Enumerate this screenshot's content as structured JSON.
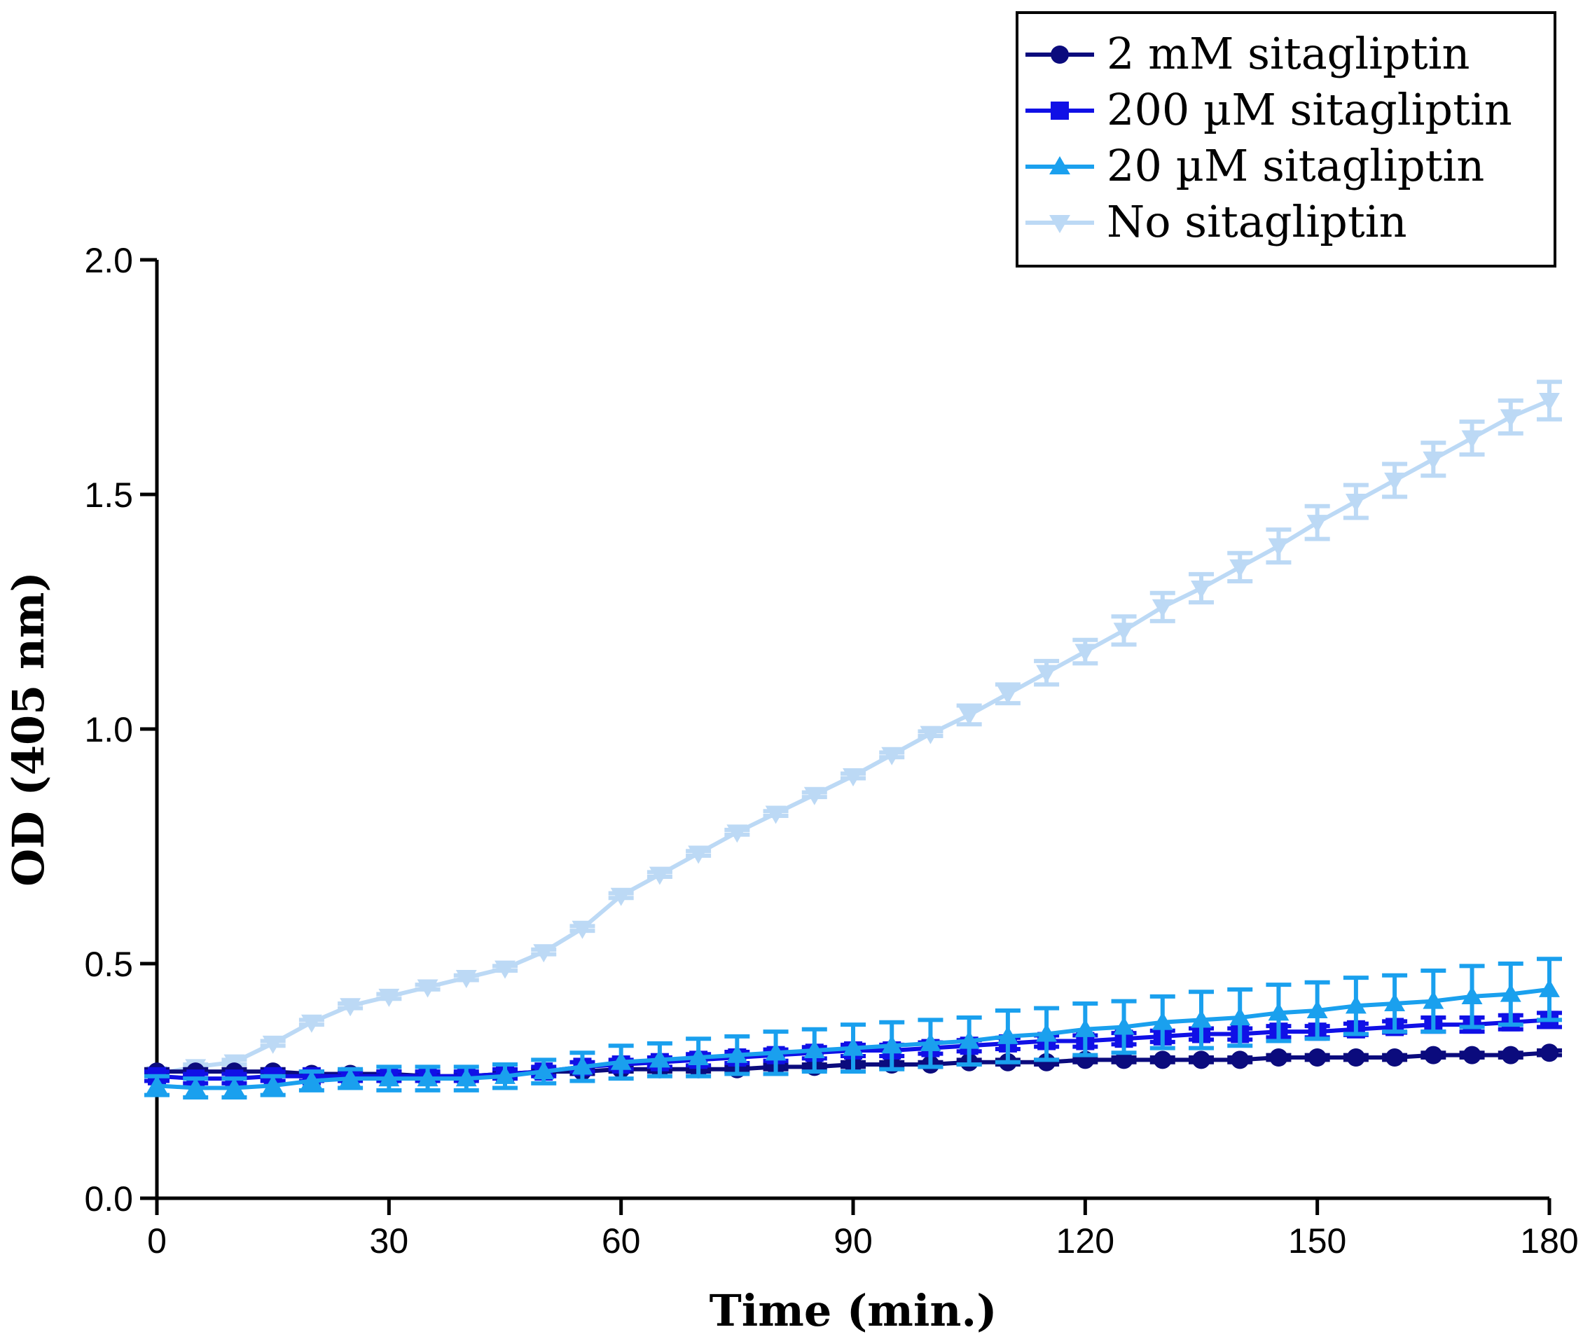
{
  "chart_data": {
    "type": "line",
    "title": "",
    "xlabel": "Time (min.)",
    "ylabel": "OD (405 nm)",
    "xlim": [
      0,
      180
    ],
    "ylim": [
      0,
      2.0
    ],
    "x_ticks": [
      "0",
      "30",
      "60",
      "90",
      "120",
      "150",
      "180"
    ],
    "y_ticks": [
      "0.0",
      "0.5",
      "1.0",
      "1.5",
      "2.0"
    ],
    "x_tick_values": [
      0,
      30,
      60,
      90,
      120,
      150,
      180
    ],
    "y_tick_values": [
      0,
      0.5,
      1.0,
      1.5,
      2.0
    ],
    "legend_position": "top-right",
    "x": [
      0,
      5,
      10,
      15,
      20,
      25,
      30,
      35,
      40,
      45,
      50,
      55,
      60,
      65,
      70,
      75,
      80,
      85,
      90,
      95,
      100,
      105,
      110,
      115,
      120,
      125,
      130,
      135,
      140,
      145,
      150,
      155,
      160,
      165,
      170,
      175,
      180
    ],
    "series": [
      {
        "name": "2 mM sitagliptin",
        "color": "#0b0b7d",
        "marker": "circle",
        "values": [
          0.27,
          0.27,
          0.27,
          0.27,
          0.265,
          0.265,
          0.265,
          0.26,
          0.26,
          0.265,
          0.27,
          0.27,
          0.275,
          0.275,
          0.275,
          0.275,
          0.28,
          0.28,
          0.285,
          0.285,
          0.285,
          0.29,
          0.29,
          0.29,
          0.295,
          0.295,
          0.295,
          0.295,
          0.295,
          0.3,
          0.3,
          0.3,
          0.3,
          0.305,
          0.305,
          0.305,
          0.31
        ],
        "errors": [
          0.005,
          0.005,
          0.005,
          0.005,
          0.005,
          0.005,
          0.005,
          0.005,
          0.005,
          0.005,
          0.005,
          0.005,
          0.005,
          0.005,
          0.005,
          0.005,
          0.005,
          0.005,
          0.005,
          0.005,
          0.005,
          0.005,
          0.005,
          0.005,
          0.005,
          0.005,
          0.005,
          0.005,
          0.005,
          0.005,
          0.005,
          0.005,
          0.005,
          0.005,
          0.005,
          0.005,
          0.005
        ]
      },
      {
        "name": "200 µM sitagliptin",
        "color": "#1010e6",
        "marker": "square",
        "values": [
          0.26,
          0.255,
          0.255,
          0.26,
          0.26,
          0.26,
          0.26,
          0.26,
          0.26,
          0.265,
          0.27,
          0.28,
          0.285,
          0.29,
          0.295,
          0.3,
          0.305,
          0.31,
          0.315,
          0.315,
          0.32,
          0.325,
          0.33,
          0.335,
          0.335,
          0.34,
          0.345,
          0.35,
          0.35,
          0.355,
          0.355,
          0.36,
          0.365,
          0.37,
          0.37,
          0.375,
          0.38
        ],
        "errors": [
          0.01,
          0.01,
          0.01,
          0.01,
          0.01,
          0.01,
          0.01,
          0.01,
          0.01,
          0.01,
          0.01,
          0.01,
          0.01,
          0.01,
          0.012,
          0.012,
          0.012,
          0.012,
          0.012,
          0.012,
          0.012,
          0.012,
          0.012,
          0.012,
          0.012,
          0.012,
          0.012,
          0.012,
          0.012,
          0.012,
          0.012,
          0.012,
          0.012,
          0.015,
          0.015,
          0.015,
          0.015
        ]
      },
      {
        "name": "20 µM sitagliptin",
        "color": "#1aa0ee",
        "marker": "triangle-up",
        "values": [
          0.24,
          0.235,
          0.235,
          0.24,
          0.25,
          0.255,
          0.255,
          0.255,
          0.255,
          0.26,
          0.27,
          0.28,
          0.29,
          0.295,
          0.3,
          0.305,
          0.31,
          0.315,
          0.32,
          0.325,
          0.33,
          0.335,
          0.345,
          0.35,
          0.36,
          0.365,
          0.375,
          0.38,
          0.385,
          0.395,
          0.4,
          0.41,
          0.415,
          0.42,
          0.43,
          0.435,
          0.445
        ],
        "errors": [
          0.02,
          0.02,
          0.02,
          0.02,
          0.02,
          0.02,
          0.025,
          0.025,
          0.025,
          0.025,
          0.025,
          0.03,
          0.035,
          0.035,
          0.04,
          0.04,
          0.045,
          0.045,
          0.05,
          0.05,
          0.05,
          0.05,
          0.055,
          0.055,
          0.055,
          0.055,
          0.055,
          0.06,
          0.06,
          0.06,
          0.06,
          0.06,
          0.06,
          0.065,
          0.065,
          0.065,
          0.065
        ]
      },
      {
        "name": "No sitagliptin",
        "color": "#bcd9f5",
        "marker": "triangle-down",
        "values": [
          0.265,
          0.28,
          0.29,
          0.33,
          0.375,
          0.41,
          0.43,
          0.45,
          0.47,
          0.49,
          0.525,
          0.575,
          0.645,
          0.69,
          0.735,
          0.78,
          0.82,
          0.86,
          0.9,
          0.945,
          0.99,
          1.03,
          1.075,
          1.12,
          1.165,
          1.21,
          1.26,
          1.3,
          1.345,
          1.39,
          1.44,
          1.485,
          1.53,
          1.575,
          1.62,
          1.665,
          1.7
        ],
        "errors": [
          0.005,
          0.005,
          0.005,
          0.005,
          0.005,
          0.005,
          0.005,
          0.005,
          0.005,
          0.005,
          0.005,
          0.005,
          0.005,
          0.005,
          0.005,
          0.005,
          0.005,
          0.005,
          0.005,
          0.005,
          0.005,
          0.02,
          0.02,
          0.025,
          0.025,
          0.03,
          0.03,
          0.03,
          0.03,
          0.035,
          0.035,
          0.035,
          0.035,
          0.035,
          0.035,
          0.035,
          0.04
        ]
      }
    ]
  }
}
